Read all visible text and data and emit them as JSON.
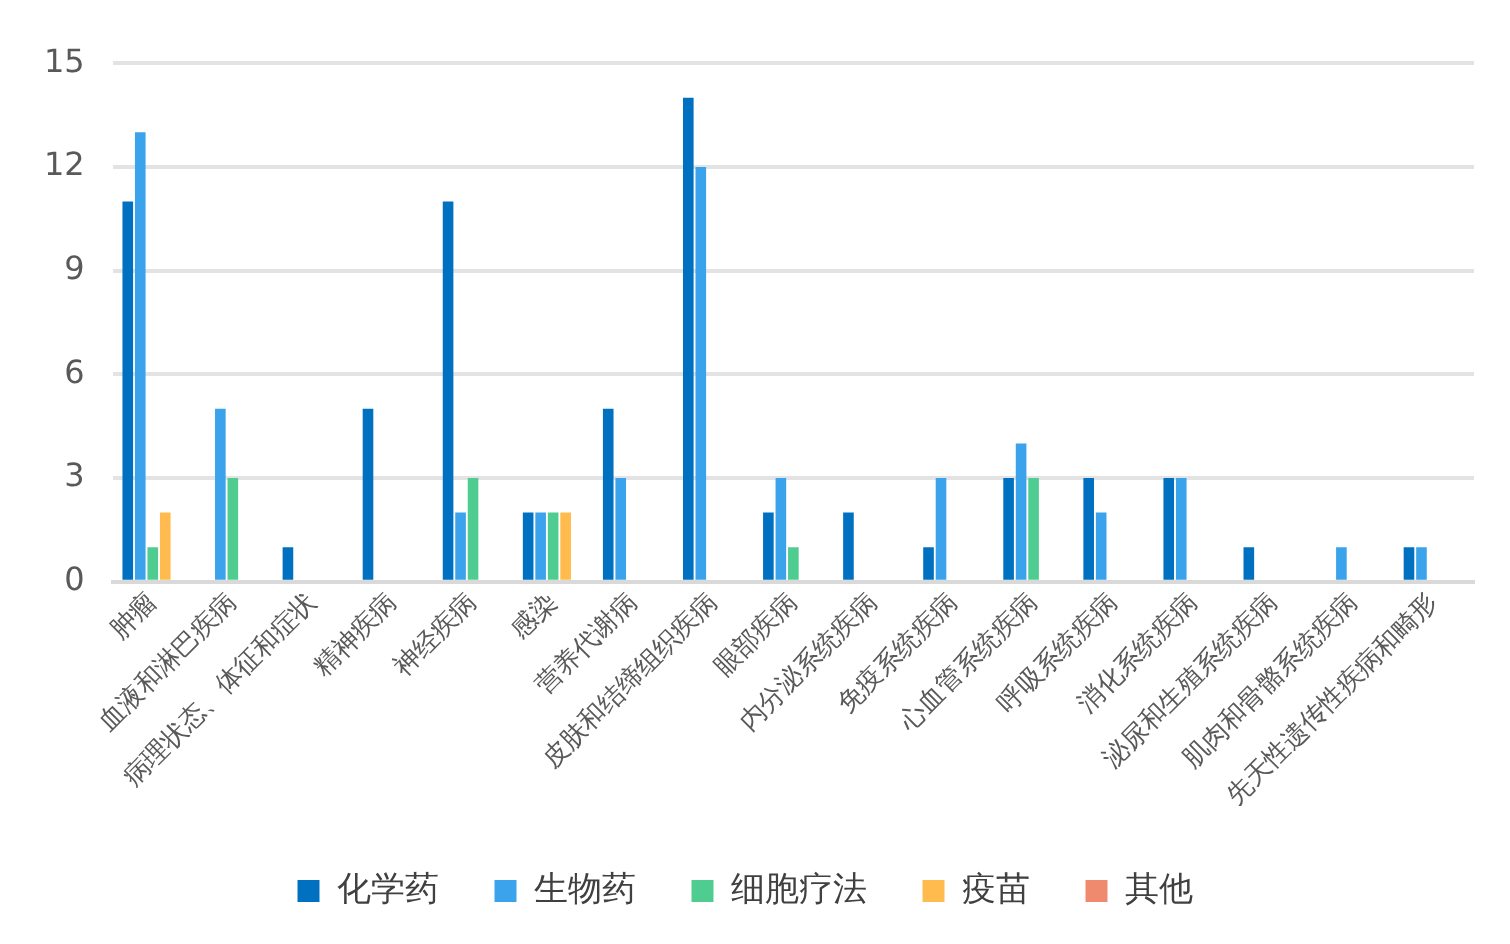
{
  "chart_data": {
    "type": "bar",
    "categories": [
      "肿瘤",
      "血液和淋巴疾病",
      "病理状态、体征和症状",
      "精神疾病",
      "神经疾病",
      "感染",
      "营养代谢病",
      "皮肤和结缔组织疾病",
      "眼部疾病",
      "内分泌系统疾病",
      "免疫系统疾病",
      "心血管系统疾病",
      "呼吸系统疾病",
      "消化系统疾病",
      "泌尿和生殖系统疾病",
      "肌肉和骨骼系统疾病",
      "先天性遗传性疾病和畸形"
    ],
    "series": [
      {
        "name": "化学药",
        "color": "#0070c0",
        "values": [
          11,
          0,
          1,
          5,
          11,
          2,
          5,
          14,
          2,
          2,
          1,
          3,
          3,
          3,
          1,
          0,
          1
        ]
      },
      {
        "name": "生物药",
        "color": "#3ba3ec",
        "values": [
          13,
          5,
          0,
          0,
          2,
          2,
          3,
          12,
          3,
          0,
          3,
          4,
          2,
          3,
          0,
          1,
          1
        ]
      },
      {
        "name": "细胞疗法",
        "color": "#4fcc8f",
        "values": [
          1,
          3,
          0,
          0,
          3,
          2,
          0,
          0,
          1,
          0,
          0,
          3,
          0,
          0,
          0,
          0,
          0
        ]
      },
      {
        "name": "疫苗",
        "color": "#ffbb4d",
        "values": [
          2,
          0,
          0,
          0,
          0,
          2,
          0,
          0,
          0,
          0,
          0,
          0,
          0,
          0,
          0,
          0,
          0
        ]
      },
      {
        "name": "其他",
        "color": "#f08a6f",
        "values": [
          0,
          0,
          0,
          0,
          0,
          0,
          0,
          0,
          0,
          0,
          0,
          0,
          0,
          0,
          0,
          0,
          0
        ]
      }
    ],
    "ylim": [
      0,
      15
    ],
    "yticks": [
      0,
      3,
      6,
      9,
      12,
      15
    ],
    "grid": "y",
    "legend": "bottom"
  }
}
